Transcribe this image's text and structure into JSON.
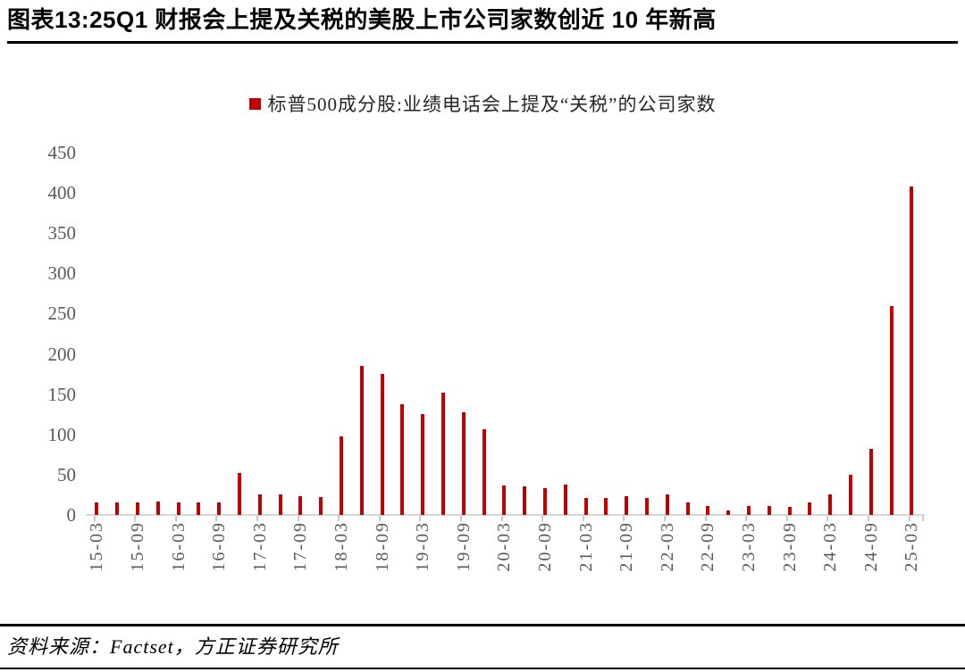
{
  "header": {
    "title": "图表13:25Q1 财报会上提及关税的美股上市公司家数创近 10 年新高"
  },
  "legend": {
    "label": "标普500成分股:业绩电话会上提及“关税”的公司家数",
    "marker_color": "#C00000"
  },
  "footer": {
    "source": "资料来源：Factset，方正证券研究所"
  },
  "chart_data": {
    "type": "bar",
    "title": "图表13:25Q1 财报会上提及关税的美股上市公司家数创近 10 年新高",
    "legend_entries": [
      "标普500成分股:业绩电话会上提及“关税”的公司家数"
    ],
    "legend_position": "top-center",
    "xlabel": "",
    "ylabel": "",
    "ylim": [
      0,
      450
    ],
    "y_ticks": [
      0,
      50,
      100,
      150,
      200,
      250,
      300,
      350,
      400,
      450
    ],
    "grid": false,
    "bar_color": "#C00000",
    "axis_color": "#d6d6d6",
    "tick_label_color": "#595959",
    "categories": [
      "15-03",
      "15-06",
      "15-09",
      "15-12",
      "16-03",
      "16-06",
      "16-09",
      "16-12",
      "17-03",
      "17-06",
      "17-09",
      "17-12",
      "18-03",
      "18-06",
      "18-09",
      "18-12",
      "19-03",
      "19-06",
      "19-09",
      "19-12",
      "20-03",
      "20-06",
      "20-09",
      "20-12",
      "21-03",
      "21-06",
      "21-09",
      "21-12",
      "22-03",
      "22-06",
      "22-09",
      "22-12",
      "23-03",
      "23-06",
      "23-09",
      "23-12",
      "24-03",
      "24-06",
      "24-09",
      "24-12",
      "25-03"
    ],
    "x_tick_labels": [
      "15-03",
      "15-09",
      "16-03",
      "16-09",
      "17-03",
      "17-09",
      "18-03",
      "18-09",
      "19-03",
      "19-09",
      "20-03",
      "20-09",
      "21-03",
      "21-09",
      "22-03",
      "22-09",
      "23-03",
      "23-09",
      "24-03",
      "24-09",
      "25-03"
    ],
    "x_label_interval": 2,
    "values": [
      16,
      15,
      15,
      17,
      15,
      16,
      15,
      52,
      26,
      25,
      23,
      22,
      98,
      185,
      175,
      137,
      125,
      152,
      128,
      106,
      37,
      36,
      33,
      38,
      21,
      21,
      23,
      21,
      26,
      16,
      11,
      6,
      11,
      11,
      10,
      15,
      25,
      50,
      82,
      259,
      408
    ]
  }
}
